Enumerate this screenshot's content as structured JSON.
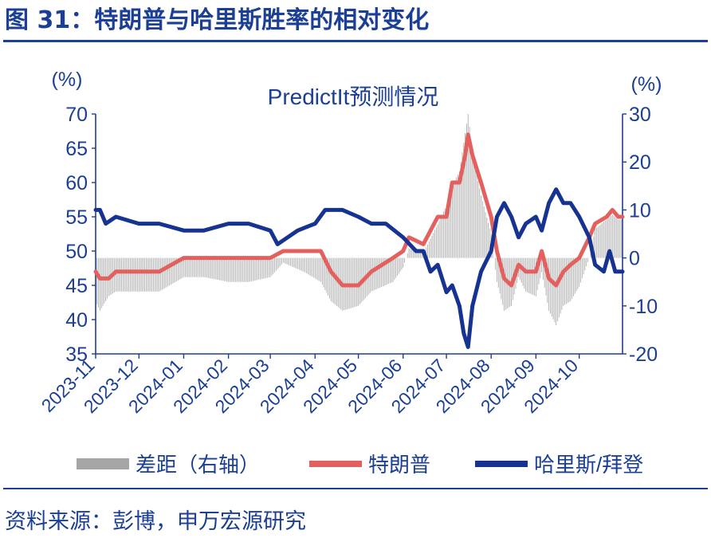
{
  "figure": {
    "title": "图 31：特朗普与哈里斯胜率的相对变化",
    "source": "资料来源：彭博，申万宏源研究"
  },
  "colors": {
    "title": "#1b3f94",
    "trump": "#e4605f",
    "harris": "#163392",
    "spread": "#a6a6a6",
    "axis": "#1b3f94"
  },
  "chart_data": {
    "type": "line",
    "title": "PredictIt预测情况",
    "left_unit": "(%)",
    "right_unit": "(%)",
    "ylim_left": [
      35,
      70
    ],
    "ylim_right": [
      -20,
      30
    ],
    "yticks_left": [
      "70",
      "65",
      "60",
      "55",
      "50",
      "45",
      "40",
      "35"
    ],
    "yticks_right": [
      "30",
      "20",
      "10",
      "0",
      "-10",
      "-20"
    ],
    "x_start": "2023-11-01",
    "x_end": "2024-10-31",
    "xticks": [
      "2023-11",
      "2023-12",
      "2024-01",
      "2024-02",
      "2024-03",
      "2024-04",
      "2024-05",
      "2024-06",
      "2024-07",
      "2024-08",
      "2024-09",
      "2024-10"
    ],
    "legend": [
      "差距（右轴）",
      "特朗普",
      "哈里斯/拜登"
    ],
    "series": [
      {
        "name": "特朗普",
        "axis": "left",
        "points": [
          [
            "2023-11-01",
            47
          ],
          [
            "2023-11-04",
            46
          ],
          [
            "2023-11-10",
            46
          ],
          [
            "2023-11-15",
            47
          ],
          [
            "2023-12-01",
            47
          ],
          [
            "2023-12-15",
            47
          ],
          [
            "2024-01-01",
            49
          ],
          [
            "2024-01-15",
            49
          ],
          [
            "2024-02-01",
            49
          ],
          [
            "2024-02-15",
            49
          ],
          [
            "2024-03-01",
            49
          ],
          [
            "2024-03-10",
            50
          ],
          [
            "2024-03-25",
            50
          ],
          [
            "2024-04-05",
            50
          ],
          [
            "2024-04-12",
            47
          ],
          [
            "2024-04-20",
            45
          ],
          [
            "2024-05-01",
            45
          ],
          [
            "2024-05-10",
            47
          ],
          [
            "2024-05-25",
            49
          ],
          [
            "2024-06-01",
            50
          ],
          [
            "2024-06-05",
            52
          ],
          [
            "2024-06-15",
            51
          ],
          [
            "2024-06-25",
            55
          ],
          [
            "2024-07-01",
            55
          ],
          [
            "2024-07-05",
            60
          ],
          [
            "2024-07-10",
            60
          ],
          [
            "2024-07-14",
            64
          ],
          [
            "2024-07-16",
            67
          ],
          [
            "2024-07-19",
            64
          ],
          [
            "2024-07-25",
            60
          ],
          [
            "2024-08-01",
            55
          ],
          [
            "2024-08-05",
            50
          ],
          [
            "2024-08-10",
            46
          ],
          [
            "2024-08-15",
            45
          ],
          [
            "2024-08-20",
            48
          ],
          [
            "2024-08-25",
            47
          ],
          [
            "2024-09-01",
            47
          ],
          [
            "2024-09-05",
            50
          ],
          [
            "2024-09-10",
            46
          ],
          [
            "2024-09-15",
            45
          ],
          [
            "2024-09-20",
            47
          ],
          [
            "2024-09-25",
            48
          ],
          [
            "2024-10-01",
            49
          ],
          [
            "2024-10-08",
            52
          ],
          [
            "2024-10-12",
            54
          ],
          [
            "2024-10-20",
            55
          ],
          [
            "2024-10-24",
            56
          ],
          [
            "2024-10-28",
            55
          ],
          [
            "2024-10-31",
            55
          ]
        ]
      },
      {
        "name": "哈里斯/拜登",
        "axis": "left",
        "points": [
          [
            "2023-11-01",
            56
          ],
          [
            "2023-11-04",
            56
          ],
          [
            "2023-11-08",
            54
          ],
          [
            "2023-11-15",
            55
          ],
          [
            "2023-12-01",
            54
          ],
          [
            "2023-12-15",
            54
          ],
          [
            "2024-01-01",
            53
          ],
          [
            "2024-01-15",
            53
          ],
          [
            "2024-02-01",
            54
          ],
          [
            "2024-02-15",
            54
          ],
          [
            "2024-03-01",
            53
          ],
          [
            "2024-03-06",
            51
          ],
          [
            "2024-03-20",
            53
          ],
          [
            "2024-04-01",
            54
          ],
          [
            "2024-04-08",
            56
          ],
          [
            "2024-04-20",
            56
          ],
          [
            "2024-05-01",
            55
          ],
          [
            "2024-05-10",
            54
          ],
          [
            "2024-05-20",
            54
          ],
          [
            "2024-06-01",
            52
          ],
          [
            "2024-06-10",
            50
          ],
          [
            "2024-06-15",
            50
          ],
          [
            "2024-06-20",
            47
          ],
          [
            "2024-06-25",
            48
          ],
          [
            "2024-07-01",
            44
          ],
          [
            "2024-07-05",
            45
          ],
          [
            "2024-07-10",
            42
          ],
          [
            "2024-07-13",
            38
          ],
          [
            "2024-07-16",
            36
          ],
          [
            "2024-07-19",
            42
          ],
          [
            "2024-07-25",
            47
          ],
          [
            "2024-08-01",
            50
          ],
          [
            "2024-08-05",
            55
          ],
          [
            "2024-08-10",
            57
          ],
          [
            "2024-08-15",
            55
          ],
          [
            "2024-08-20",
            52
          ],
          [
            "2024-08-25",
            54
          ],
          [
            "2024-09-01",
            55
          ],
          [
            "2024-09-05",
            53
          ],
          [
            "2024-09-10",
            57
          ],
          [
            "2024-09-15",
            59
          ],
          [
            "2024-09-20",
            57
          ],
          [
            "2024-09-25",
            57
          ],
          [
            "2024-10-01",
            55
          ],
          [
            "2024-10-08",
            52
          ],
          [
            "2024-10-12",
            48
          ],
          [
            "2024-10-18",
            47
          ],
          [
            "2024-10-22",
            50
          ],
          [
            "2024-10-26",
            47
          ],
          [
            "2024-10-31",
            47
          ]
        ]
      },
      {
        "name": "差距（右轴）",
        "type": "bar",
        "axis": "right",
        "points": [
          [
            "2023-11-01",
            -9
          ],
          [
            "2023-11-04",
            -11
          ],
          [
            "2023-11-10",
            -8
          ],
          [
            "2023-11-15",
            -7
          ],
          [
            "2023-12-01",
            -7
          ],
          [
            "2023-12-15",
            -7
          ],
          [
            "2024-01-01",
            -4
          ],
          [
            "2024-01-15",
            -4
          ],
          [
            "2024-02-01",
            -5
          ],
          [
            "2024-02-15",
            -5
          ],
          [
            "2024-03-01",
            -4
          ],
          [
            "2024-03-10",
            -1
          ],
          [
            "2024-03-25",
            -3
          ],
          [
            "2024-04-05",
            -5
          ],
          [
            "2024-04-12",
            -9
          ],
          [
            "2024-04-20",
            -11
          ],
          [
            "2024-05-01",
            -10
          ],
          [
            "2024-05-10",
            -7
          ],
          [
            "2024-05-25",
            -5
          ],
          [
            "2024-06-01",
            -2
          ],
          [
            "2024-06-05",
            2
          ],
          [
            "2024-06-15",
            1
          ],
          [
            "2024-06-25",
            7
          ],
          [
            "2024-07-01",
            11
          ],
          [
            "2024-07-05",
            15
          ],
          [
            "2024-07-10",
            18
          ],
          [
            "2024-07-14",
            26
          ],
          [
            "2024-07-16",
            30
          ],
          [
            "2024-07-19",
            22
          ],
          [
            "2024-07-25",
            13
          ],
          [
            "2024-08-01",
            5
          ],
          [
            "2024-08-05",
            -5
          ],
          [
            "2024-08-10",
            -11
          ],
          [
            "2024-08-15",
            -10
          ],
          [
            "2024-08-20",
            -4
          ],
          [
            "2024-08-25",
            -7
          ],
          [
            "2024-09-01",
            -8
          ],
          [
            "2024-09-05",
            -3
          ],
          [
            "2024-09-10",
            -11
          ],
          [
            "2024-09-15",
            -14
          ],
          [
            "2024-09-20",
            -10
          ],
          [
            "2024-09-25",
            -9
          ],
          [
            "2024-10-01",
            -6
          ],
          [
            "2024-10-08",
            0
          ],
          [
            "2024-10-12",
            6
          ],
          [
            "2024-10-20",
            8
          ],
          [
            "2024-10-24",
            9
          ],
          [
            "2024-10-28",
            8
          ],
          [
            "2024-10-31",
            8
          ]
        ]
      }
    ]
  }
}
